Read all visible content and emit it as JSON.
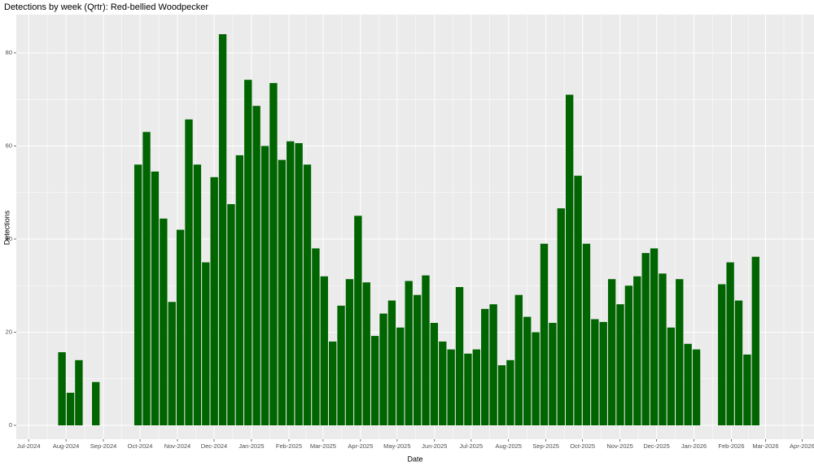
{
  "chart_data": {
    "type": "bar",
    "title": "Detections by week (Qrtr): Red-bellied Woodpecker",
    "x_label": "Date",
    "y_label": "Detections",
    "color": "#006400",
    "grid": true,
    "x": [
      0,
      1,
      2,
      4,
      9,
      10,
      11,
      12,
      13,
      14,
      15,
      16,
      17,
      18,
      19,
      20,
      21,
      22,
      23,
      24,
      25,
      26,
      27,
      28,
      29,
      30,
      31,
      32,
      33,
      34,
      35,
      36,
      37,
      38,
      39,
      40,
      41,
      42,
      43,
      44,
      45,
      46,
      47,
      48,
      49,
      50,
      51,
      52,
      53,
      54,
      55,
      56,
      57,
      58,
      59,
      60,
      61,
      62,
      63,
      64,
      65,
      66,
      67,
      68,
      69,
      70,
      71,
      72,
      73,
      74,
      75,
      78,
      79,
      80,
      81,
      82
    ],
    "values": [
      15.7,
      7,
      14,
      9.3,
      56,
      63,
      54.5,
      44.4,
      26.5,
      42,
      65.7,
      56,
      35,
      53.3,
      84,
      47.5,
      58,
      74.2,
      68.6,
      60,
      73.5,
      57,
      61,
      60.6,
      56,
      38,
      32,
      18,
      25.7,
      31.4,
      45,
      30.7,
      19.2,
      24,
      26.8,
      21,
      31,
      28,
      32.2,
      22,
      18,
      16.3,
      29.7,
      15.4,
      16.3,
      25,
      26,
      12.9,
      14,
      28,
      23.3,
      20,
      39,
      22,
      46.6,
      71,
      53.6,
      39,
      22.8,
      22.2,
      31.4,
      26,
      30,
      32,
      37,
      38,
      32.6,
      21,
      31.4,
      17.5,
      16.3,
      30.3,
      35,
      26.8,
      15.2,
      36.2
    ],
    "xlim": [
      -5.4,
      88.9
    ],
    "xticks": [
      {
        "value": -3.94,
        "label": "Jul-2024"
      },
      {
        "value": 0.48,
        "label": "Aug-2024"
      },
      {
        "value": 4.9,
        "label": "Sep-2024"
      },
      {
        "value": 9.23,
        "label": "Oct-2024"
      },
      {
        "value": 13.65,
        "label": "Nov-2024"
      },
      {
        "value": 17.98,
        "label": "Dec-2024"
      },
      {
        "value": 22.4,
        "label": "Jan-2025"
      },
      {
        "value": 26.83,
        "label": "Feb-2025"
      },
      {
        "value": 30.87,
        "label": "Mar-2025"
      },
      {
        "value": 35.29,
        "label": "Apr-2025"
      },
      {
        "value": 39.62,
        "label": "May-2025"
      },
      {
        "value": 44.04,
        "label": "Jun-2025"
      },
      {
        "value": 48.37,
        "label": "Jul-2025"
      },
      {
        "value": 52.79,
        "label": "Aug-2025"
      },
      {
        "value": 57.21,
        "label": "Sep-2025"
      },
      {
        "value": 61.54,
        "label": "Oct-2025"
      },
      {
        "value": 65.96,
        "label": "Nov-2025"
      },
      {
        "value": 70.29,
        "label": "Dec-2025"
      },
      {
        "value": 74.71,
        "label": "Jan-2026"
      },
      {
        "value": 79.13,
        "label": "Feb-2026"
      },
      {
        "value": 83.17,
        "label": "Mar-2026"
      },
      {
        "value": 87.5,
        "label": "Apr-2026"
      }
    ],
    "ylim": [
      -2.97,
      88.2
    ],
    "yticks": [
      0,
      20,
      40,
      60,
      80
    ]
  }
}
